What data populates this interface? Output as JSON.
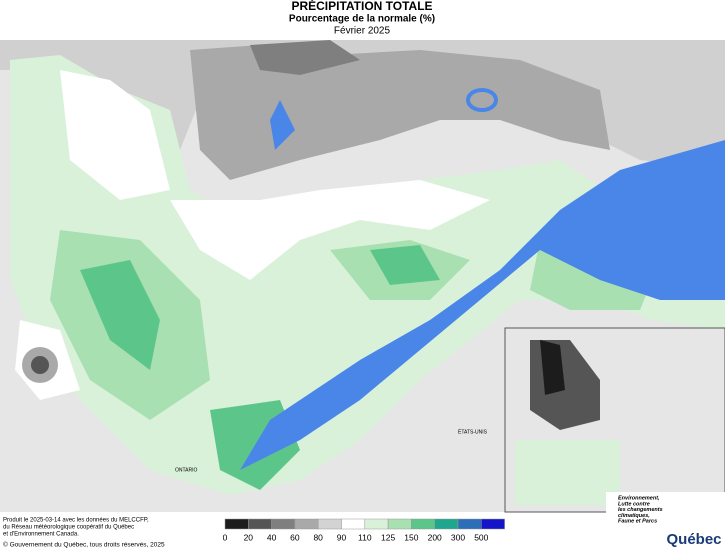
{
  "header": {
    "title": "PRÉCIPITATION TOTALE",
    "subtitle": "Pourcentage de la normale (%)",
    "period": "Février 2025"
  },
  "map": {
    "labels": [
      "ONTARIO",
      "ÉTATS-UNIS"
    ]
  },
  "legend": {
    "breaks": [
      0,
      20,
      40,
      60,
      80,
      90,
      110,
      125,
      150,
      200,
      300,
      500
    ],
    "colors": [
      "#1c1c1c",
      "#555555",
      "#7f7f7f",
      "#a9a9a9",
      "#d3d3d3",
      "#ffffff",
      "#d9f1d9",
      "#a8e0b2",
      "#5cc68a",
      "#1fa68f",
      "#2a6fb8",
      "#1414c8"
    ]
  },
  "footer": {
    "credits": [
      "Produit le 2025-03-14 avec les données du MELCCFP,",
      "du Réseau météorologique coopératif du Québec",
      "et d'Environnement Canada."
    ],
    "copyright": "© Gouvernement du Québec, tous droits réservés, 2025"
  },
  "logo": {
    "ministry": [
      "Environnement,",
      "Lutte contre",
      "les changements",
      "climatiques,",
      "Faune et Parcs"
    ],
    "name": "Québec"
  }
}
